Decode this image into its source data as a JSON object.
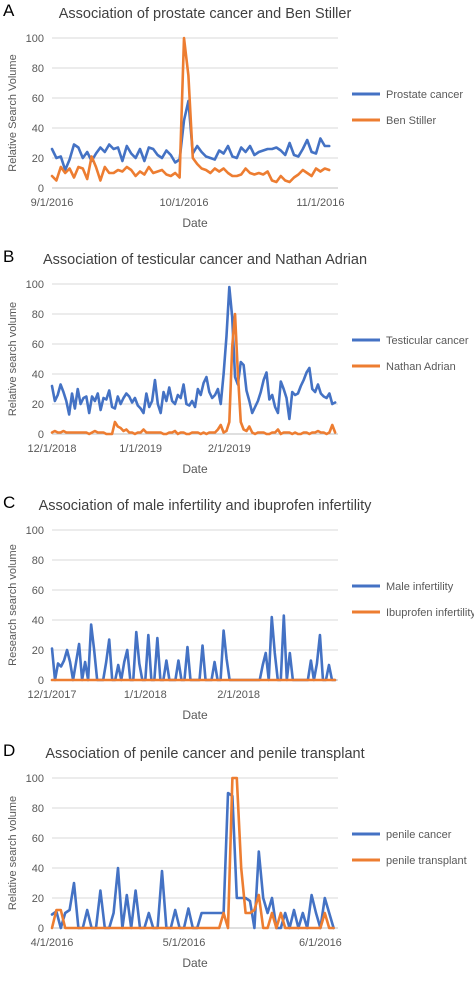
{
  "chart_data": [
    {
      "type": "line",
      "panel_letter": "A",
      "title": "Association of prostate cancer and Ben Stiller",
      "xlabel": "Date",
      "ylabel": "Relative Search Volume",
      "ylim": [
        0,
        100
      ],
      "yticks": [
        0,
        20,
        40,
        60,
        80,
        100
      ],
      "xlim": [
        0,
        65
      ],
      "xtick_positions": [
        0,
        30,
        61
      ],
      "xtick_labels": [
        "9/1/2016",
        "10/1/2016",
        "11/1/2016"
      ],
      "legend_position": "right",
      "x": [
        0,
        1,
        2,
        3,
        4,
        5,
        6,
        7,
        8,
        9,
        10,
        11,
        12,
        13,
        14,
        15,
        16,
        17,
        18,
        19,
        20,
        21,
        22,
        23,
        24,
        25,
        26,
        27,
        28,
        29,
        30,
        31,
        32,
        33,
        34,
        35,
        36,
        37,
        38,
        39,
        40,
        41,
        42,
        43,
        44,
        45,
        46,
        47,
        48,
        49,
        50,
        51,
        52,
        53,
        54,
        55,
        56,
        57,
        58,
        59,
        60,
        61,
        62,
        63
      ],
      "series": [
        {
          "name": "Prostate cancer",
          "color": "#4472C4",
          "values": [
            26,
            20,
            21,
            12,
            19,
            29,
            27,
            20,
            24,
            18,
            23,
            27,
            24,
            29,
            26,
            27,
            18,
            28,
            23,
            20,
            26,
            18,
            27,
            26,
            22,
            20,
            25,
            22,
            17,
            19,
            45,
            58,
            23,
            28,
            24,
            21,
            20,
            19,
            25,
            23,
            28,
            21,
            20,
            27,
            24,
            28,
            22,
            24,
            25,
            26,
            26,
            27,
            25,
            22,
            30,
            22,
            21,
            26,
            32,
            24,
            23,
            33,
            28,
            28
          ]
        },
        {
          "name": "Ben Stiller",
          "color": "#ED7D31",
          "values": [
            8,
            5,
            14,
            10,
            13,
            7,
            14,
            13,
            6,
            21,
            14,
            5,
            14,
            10,
            10,
            12,
            11,
            14,
            12,
            8,
            11,
            9,
            14,
            10,
            11,
            12,
            9,
            8,
            10,
            7,
            100,
            75,
            20,
            16,
            13,
            12,
            10,
            13,
            11,
            13,
            10,
            8,
            8,
            9,
            13,
            10,
            9,
            10,
            9,
            11,
            5,
            4,
            8,
            5,
            4,
            7,
            9,
            12,
            10,
            8,
            13,
            11,
            13,
            12
          ]
        }
      ]
    },
    {
      "type": "line",
      "panel_letter": "B",
      "title": "Association of testicular cancer and Nathan Adrian",
      "xlabel": "Date",
      "ylabel": "Relative search volume",
      "ylim": [
        0,
        100
      ],
      "yticks": [
        0,
        20,
        40,
        60,
        80,
        100
      ],
      "xlim": [
        0,
        100
      ],
      "xtick_positions": [
        0,
        31,
        62
      ],
      "xtick_labels": [
        "12/1/2018",
        "1/1/2019",
        "2/1/2019"
      ],
      "legend_position": "right",
      "x": [
        0,
        1,
        2,
        3,
        4,
        5,
        6,
        7,
        8,
        9,
        10,
        11,
        12,
        13,
        14,
        15,
        16,
        17,
        18,
        19,
        20,
        21,
        22,
        23,
        24,
        25,
        26,
        27,
        28,
        29,
        30,
        31,
        32,
        33,
        34,
        35,
        36,
        37,
        38,
        39,
        40,
        41,
        42,
        43,
        44,
        45,
        46,
        47,
        48,
        49,
        50,
        51,
        52,
        53,
        54,
        55,
        56,
        57,
        58,
        59,
        60,
        61,
        62,
        63,
        64,
        65,
        66,
        67,
        68,
        69,
        70,
        71,
        72,
        73,
        74,
        75,
        76,
        77,
        78,
        79,
        80,
        81,
        82,
        83,
        84,
        85,
        86,
        87,
        88,
        89,
        90,
        91,
        92,
        93,
        94,
        95,
        96,
        97,
        98,
        99
      ],
      "series": [
        {
          "name": "Testicular cancer",
          "color": "#4472C4",
          "values": [
            32,
            22,
            26,
            33,
            28,
            22,
            13,
            27,
            17,
            30,
            20,
            24,
            25,
            14,
            25,
            22,
            27,
            16,
            24,
            23,
            29,
            18,
            17,
            25,
            20,
            24,
            27,
            25,
            21,
            24,
            19,
            17,
            14,
            27,
            18,
            22,
            36,
            20,
            14,
            28,
            22,
            31,
            22,
            20,
            26,
            24,
            33,
            20,
            19,
            22,
            18,
            30,
            26,
            34,
            38,
            28,
            24,
            26,
            30,
            20,
            40,
            65,
            98,
            78,
            38,
            33,
            48,
            46,
            29,
            22,
            14,
            18,
            22,
            28,
            36,
            41,
            23,
            26,
            18,
            14,
            35,
            30,
            24,
            10,
            28,
            26,
            27,
            32,
            36,
            41,
            44,
            30,
            28,
            33,
            27,
            25,
            24,
            27,
            20,
            21
          ]
        },
        {
          "name": "Nathan Adrian",
          "color": "#ED7D31",
          "values": [
            1,
            2,
            1,
            1,
            2,
            1,
            1,
            1,
            1,
            1,
            1,
            1,
            1,
            0,
            1,
            2,
            1,
            1,
            1,
            0,
            0,
            0,
            8,
            5,
            4,
            2,
            3,
            1,
            1,
            0,
            1,
            1,
            3,
            1,
            1,
            1,
            1,
            1,
            1,
            0,
            0,
            1,
            1,
            2,
            0,
            1,
            1,
            0,
            0,
            1,
            1,
            1,
            0,
            1,
            0,
            1,
            1,
            1,
            3,
            6,
            1,
            2,
            8,
            58,
            80,
            40,
            8,
            3,
            2,
            5,
            1,
            0,
            1,
            1,
            1,
            0,
            0,
            1,
            1,
            3,
            0,
            1,
            1,
            1,
            0,
            1,
            0,
            0,
            1,
            1,
            0,
            1,
            1,
            2,
            1,
            1,
            0,
            1,
            6,
            1
          ]
        }
      ]
    },
    {
      "type": "line",
      "panel_letter": "C",
      "title": "Association of male infertility and ibuprofen infertility",
      "xlabel": "Date",
      "ylabel": "Research search volume",
      "ylim": [
        0,
        100
      ],
      "yticks": [
        0,
        20,
        40,
        60,
        80,
        100
      ],
      "xlim": [
        0,
        95
      ],
      "xtick_positions": [
        0,
        31,
        62
      ],
      "xtick_labels": [
        "12/1/2017",
        "1/1/2018",
        "2/1/2018"
      ],
      "legend_position": "right",
      "x": [
        0,
        1,
        2,
        3,
        4,
        5,
        6,
        7,
        8,
        9,
        10,
        11,
        12,
        13,
        14,
        15,
        16,
        17,
        18,
        19,
        20,
        21,
        22,
        23,
        24,
        25,
        26,
        27,
        28,
        29,
        30,
        31,
        32,
        33,
        34,
        35,
        36,
        37,
        38,
        39,
        40,
        41,
        42,
        43,
        44,
        45,
        46,
        47,
        48,
        49,
        50,
        51,
        52,
        53,
        54,
        55,
        56,
        57,
        58,
        59,
        60,
        61,
        62,
        63,
        64,
        65,
        66,
        67,
        68,
        69,
        70,
        71,
        72,
        73,
        74,
        75,
        76,
        77,
        78,
        79,
        80,
        81,
        82,
        83,
        84,
        85,
        86,
        87,
        88,
        89,
        90,
        91,
        92,
        93,
        94
      ],
      "series": [
        {
          "name": "Male infertility",
          "color": "#4472C4",
          "values": [
            21,
            0,
            11,
            9,
            13,
            20,
            12,
            0,
            12,
            24,
            0,
            12,
            0,
            37,
            20,
            0,
            0,
            0,
            12,
            27,
            0,
            0,
            10,
            0,
            12,
            20,
            0,
            0,
            32,
            11,
            0,
            0,
            30,
            0,
            0,
            28,
            0,
            0,
            13,
            0,
            0,
            0,
            13,
            0,
            0,
            22,
            0,
            0,
            0,
            0,
            23,
            0,
            0,
            0,
            12,
            0,
            0,
            33,
            14,
            0,
            0,
            0,
            0,
            0,
            0,
            0,
            0,
            0,
            0,
            0,
            10,
            18,
            0,
            42,
            18,
            0,
            0,
            43,
            0,
            18,
            0,
            0,
            0,
            0,
            0,
            0,
            13,
            0,
            11,
            30,
            0,
            0,
            10,
            0,
            0
          ]
        },
        {
          "name": "Ibuprofen infertility",
          "color": "#ED7D31",
          "values": [
            0,
            0,
            0,
            0,
            0,
            0,
            0,
            0,
            0,
            0,
            0,
            0,
            0,
            0,
            0,
            0,
            0,
            0,
            0,
            0,
            0,
            0,
            0,
            0,
            0,
            0,
            0,
            0,
            0,
            0,
            0,
            0,
            0,
            0,
            0,
            0,
            0,
            0,
            0,
            0,
            0,
            0,
            0,
            0,
            0,
            0,
            0,
            0,
            0,
            0,
            0,
            0,
            0,
            0,
            0,
            0,
            0,
            0,
            0,
            0,
            0,
            0,
            0,
            0,
            0,
            0,
            0,
            0,
            0,
            0,
            0,
            0,
            0,
            0,
            0,
            0,
            0,
            0,
            0,
            0,
            0,
            0,
            0,
            0,
            0,
            0,
            0,
            0,
            0,
            0,
            0,
            0,
            0,
            0,
            0
          ]
        }
      ]
    },
    {
      "type": "line",
      "panel_letter": "D",
      "title": "Association of penile cancer and penile transplant",
      "xlabel": "Date",
      "ylabel": "Relative search volume",
      "ylim": [
        0,
        100
      ],
      "yticks": [
        0,
        20,
        40,
        60,
        80,
        100
      ],
      "xlim": [
        0,
        65
      ],
      "xtick_positions": [
        0,
        30,
        61
      ],
      "xtick_labels": [
        "4/1/2016",
        "5/1/2016",
        "6/1/2016"
      ],
      "legend_position": "right",
      "x": [
        0,
        1,
        2,
        3,
        4,
        5,
        6,
        7,
        8,
        9,
        10,
        11,
        12,
        13,
        14,
        15,
        16,
        17,
        18,
        19,
        20,
        21,
        22,
        23,
        24,
        25,
        26,
        27,
        28,
        29,
        30,
        31,
        32,
        33,
        34,
        35,
        36,
        37,
        38,
        39,
        40,
        41,
        42,
        43,
        44,
        45,
        46,
        47,
        48,
        49,
        50,
        51,
        52,
        53,
        54,
        55,
        56,
        57,
        58,
        59,
        60,
        61,
        62,
        63,
        64
      ],
      "series": [
        {
          "name": "penile cancer",
          "color": "#4472C4",
          "values": [
            9,
            11,
            0,
            10,
            12,
            30,
            0,
            0,
            12,
            0,
            0,
            25,
            0,
            0,
            10,
            40,
            0,
            22,
            0,
            25,
            0,
            0,
            10,
            0,
            0,
            38,
            0,
            0,
            12,
            0,
            0,
            13,
            0,
            0,
            10,
            10,
            10,
            10,
            10,
            10,
            90,
            88,
            20,
            20,
            20,
            18,
            0,
            51,
            20,
            10,
            20,
            0,
            0,
            10,
            0,
            12,
            0,
            10,
            0,
            22,
            10,
            0,
            20,
            10,
            0
          ]
        },
        {
          "name": "penile transplant",
          "color": "#ED7D31",
          "values": [
            0,
            12,
            12,
            0,
            0,
            0,
            0,
            0,
            0,
            0,
            0,
            0,
            0,
            0,
            0,
            0,
            0,
            0,
            0,
            0,
            0,
            0,
            0,
            0,
            0,
            0,
            0,
            0,
            0,
            0,
            0,
            0,
            0,
            0,
            0,
            0,
            0,
            0,
            0,
            10,
            0,
            100,
            100,
            40,
            10,
            10,
            12,
            22,
            0,
            0,
            10,
            0,
            10,
            0,
            0,
            0,
            0,
            0,
            0,
            0,
            0,
            0,
            10,
            0,
            0
          ]
        }
      ]
    }
  ]
}
